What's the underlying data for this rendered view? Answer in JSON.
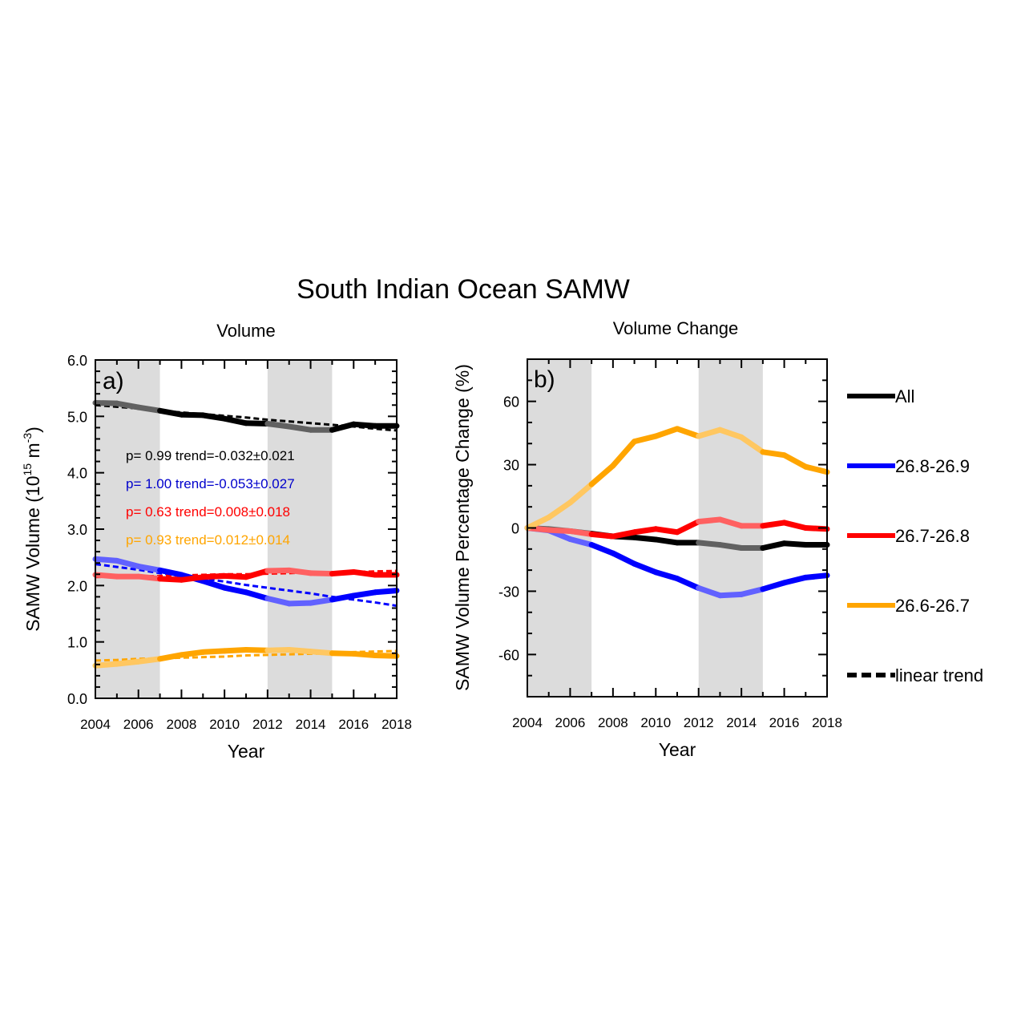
{
  "figure": {
    "title": "South Indian Ocean SAMW"
  },
  "chart_data": [
    {
      "type": "line",
      "title": "Volume",
      "panel_label": "a)",
      "xlabel": "Year",
      "ylabel": "SAMW Volume (10",
      "ylabel_sup1": "15",
      "ylabel_mid": " m",
      "ylabel_sup2": "-3",
      "ylabel_end": ")",
      "xlim": [
        2004,
        2018
      ],
      "ylim": [
        0,
        6
      ],
      "xticks": [
        2004,
        2006,
        2008,
        2010,
        2012,
        2014,
        2016,
        2018
      ],
      "yticks": [
        0,
        1,
        2,
        3,
        4,
        5,
        6
      ],
      "ytick_labels": [
        "0.0",
        "1.0",
        "2.0",
        "3.0",
        "4.0",
        "5.0",
        "6.0"
      ],
      "shaded_periods": [
        [
          2004,
          2007
        ],
        [
          2012,
          2015
        ]
      ],
      "x": [
        2004,
        2005,
        2006,
        2007,
        2008,
        2009,
        2010,
        2011,
        2012,
        2013,
        2014,
        2015,
        2016,
        2017,
        2018
      ],
      "series": [
        {
          "name": "All",
          "color": "#000000",
          "values": [
            5.24,
            5.23,
            5.16,
            5.1,
            5.03,
            5.02,
            4.96,
            4.88,
            4.87,
            4.82,
            4.76,
            4.76,
            4.86,
            4.83,
            4.83
          ],
          "trend": [
            5.2,
            5.17,
            5.14,
            5.1,
            5.07,
            5.04,
            5.01,
            4.98,
            4.94,
            4.91,
            4.88,
            4.85,
            4.82,
            4.78,
            4.75
          ]
        },
        {
          "name": "26.8-26.9",
          "color": "#0000ff",
          "values": [
            2.47,
            2.44,
            2.34,
            2.27,
            2.19,
            2.08,
            1.96,
            1.88,
            1.77,
            1.68,
            1.69,
            1.75,
            1.82,
            1.88,
            1.91
          ],
          "trend": [
            2.38,
            2.33,
            2.28,
            2.22,
            2.17,
            2.12,
            2.07,
            2.01,
            1.96,
            1.91,
            1.86,
            1.8,
            1.75,
            1.7,
            1.64
          ]
        },
        {
          "name": "26.7-26.8",
          "color": "#ff0000",
          "values": [
            2.19,
            2.16,
            2.16,
            2.12,
            2.1,
            2.15,
            2.17,
            2.15,
            2.26,
            2.27,
            2.22,
            2.21,
            2.24,
            2.19,
            2.19
          ],
          "trend": [
            2.15,
            2.16,
            2.16,
            2.17,
            2.18,
            2.19,
            2.2,
            2.2,
            2.21,
            2.22,
            2.23,
            2.24,
            2.24,
            2.25,
            2.26
          ]
        },
        {
          "name": "26.6-26.7",
          "color": "#ffa500",
          "values": [
            0.58,
            0.61,
            0.65,
            0.7,
            0.77,
            0.82,
            0.84,
            0.86,
            0.85,
            0.86,
            0.83,
            0.8,
            0.79,
            0.76,
            0.75
          ],
          "trend": [
            0.67,
            0.68,
            0.7,
            0.71,
            0.72,
            0.73,
            0.74,
            0.76,
            0.77,
            0.78,
            0.79,
            0.8,
            0.82,
            0.83,
            0.84
          ]
        }
      ],
      "annotations": [
        {
          "text": "p= 0.99  trend=-0.032±0.021",
          "color": "#000000"
        },
        {
          "text": "p= 1.00  trend=-0.053±0.027",
          "color": "#0000cc"
        },
        {
          "text": "p= 0.63  trend=0.008±0.018",
          "color": "#ff0000"
        },
        {
          "text": "p= 0.93  trend=0.012±0.014",
          "color": "#ffa500"
        }
      ]
    },
    {
      "type": "line",
      "title": "Volume Change",
      "panel_label": "b)",
      "xlabel": "Year",
      "ylabel": "SAMW Volume Percentage Change (%)",
      "xlim": [
        2004,
        2018
      ],
      "ylim": [
        -80,
        80
      ],
      "xticks": [
        2004,
        2006,
        2008,
        2010,
        2012,
        2014,
        2016,
        2018
      ],
      "yticks": [
        -60,
        -30,
        0,
        30,
        60
      ],
      "shaded_periods": [
        [
          2004,
          2007
        ],
        [
          2012,
          2015
        ]
      ],
      "x": [
        2004,
        2005,
        2006,
        2007,
        2008,
        2009,
        2010,
        2011,
        2012,
        2013,
        2014,
        2015,
        2016,
        2017,
        2018
      ],
      "series": [
        {
          "name": "All",
          "color": "#000000",
          "values": [
            0,
            -0.5,
            -1.5,
            -2.7,
            -4,
            -4.5,
            -5.5,
            -7,
            -7,
            -8,
            -9.5,
            -9.5,
            -7.3,
            -8,
            -8
          ]
        },
        {
          "name": "26.8-26.9",
          "color": "#0000ff",
          "values": [
            0,
            -1.2,
            -5.3,
            -8,
            -12,
            -17,
            -21,
            -24,
            -28.5,
            -32,
            -31.5,
            -29,
            -26,
            -23.5,
            -22.5
          ]
        },
        {
          "name": "26.7-26.8",
          "color": "#ff0000",
          "values": [
            0,
            -1,
            -1.5,
            -3,
            -4,
            -2,
            -0.5,
            -2,
            3,
            4,
            1,
            1,
            2.5,
            0,
            -0.5
          ]
        },
        {
          "name": "26.6-26.7",
          "color": "#ffa500",
          "values": [
            0,
            5,
            12,
            20.7,
            29.5,
            41,
            43.5,
            47,
            43.5,
            46.5,
            43,
            36,
            34.5,
            29,
            26.5
          ]
        }
      ],
      "legend": {
        "placement": "right",
        "items": [
          {
            "label": "All",
            "color": "#000000",
            "style": "solid"
          },
          {
            "label": "26.8-26.9",
            "color": "#0000ff",
            "style": "solid"
          },
          {
            "label": "26.7-26.8",
            "color": "#ff0000",
            "style": "solid"
          },
          {
            "label": "26.6-26.7",
            "color": "#ffa500",
            "style": "solid"
          },
          {
            "label": "linear trend",
            "color": "#000000",
            "style": "dashed"
          }
        ]
      }
    }
  ]
}
